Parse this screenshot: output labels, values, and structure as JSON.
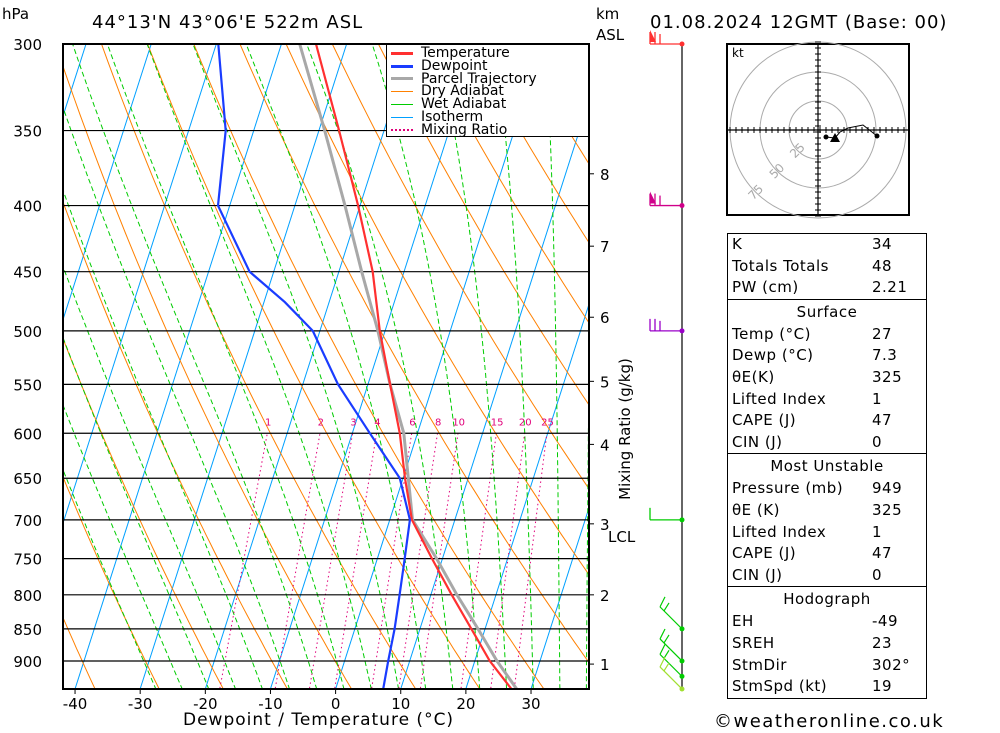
{
  "header": {
    "units_left": "hPa",
    "location": "44°13'N 43°06'E 522m ASL",
    "units_right_1": "km",
    "units_right_2": "ASL",
    "datetime": "01.08.2024 12GMT (Base: 00)"
  },
  "chart_data": {
    "type": "line",
    "subtype": "skew-t log-p",
    "xlabel": "Dewpoint / Temperature (°C)",
    "ylabel": "hPa",
    "x_ticks": [
      -40,
      -30,
      -20,
      -10,
      0,
      10,
      20,
      30
    ],
    "y_ticks": [
      300,
      350,
      400,
      450,
      500,
      550,
      600,
      650,
      700,
      750,
      800,
      850,
      900
    ],
    "ylim": [
      946,
      300
    ],
    "legend": [
      "Temperature",
      "Dewpoint",
      "Parcel Trajectory",
      "Dry Adiabat",
      "Wet Adiabat",
      "Isotherm",
      "Mixing Ratio"
    ],
    "legend_position": "top-right",
    "colors": {
      "temperature": "#ff3030",
      "dewpoint": "#1a3cff",
      "parcel": "#a8a8a8",
      "dry": "#ff8000",
      "wet": "#00cc00",
      "isotherm": "#00a0ff",
      "mixing": "#e0007a"
    },
    "series": [
      {
        "name": "Temperature",
        "pressure": [
          946,
          900,
          850,
          800,
          750,
          700,
          650,
          600,
          550,
          500,
          450,
          400,
          350,
          300
        ],
        "values": [
          27.0,
          22.3,
          17.9,
          13.2,
          8.4,
          3.4,
          0.3,
          -2.7,
          -6.6,
          -10.8,
          -14.8,
          -20.3,
          -26.9,
          -34.7
        ]
      },
      {
        "name": "Dewpoint",
        "pressure": [
          946,
          900,
          850,
          800,
          750,
          700,
          650,
          600,
          550,
          500,
          475,
          450,
          400,
          350,
          300
        ],
        "values": [
          7.3,
          6.7,
          6.1,
          5.2,
          4.2,
          3.1,
          -0.5,
          -7.3,
          -14.6,
          -21.1,
          -26.8,
          -33.7,
          -41.8,
          -44.3,
          -49.7
        ]
      },
      {
        "name": "Parcel Trajectory",
        "pressure": [
          946,
          900,
          850,
          800,
          750,
          700,
          650,
          600,
          550,
          500,
          450,
          400,
          350,
          300
        ],
        "values": [
          27.8,
          23.4,
          18.9,
          14.0,
          9.1,
          3.5,
          0.8,
          -2.1,
          -6.6,
          -11.1,
          -16.5,
          -22.3,
          -29.1,
          -37.2
        ]
      }
    ],
    "mixing_ratio_labels": [
      "1",
      "2",
      "3",
      "4",
      "6",
      "8",
      "10",
      "15",
      "20",
      "25"
    ],
    "mixing_ratio_axis_label": "Mixing Ratio (g/kg)",
    "km_labels": [
      {
        "km": "8",
        "p": 378
      },
      {
        "km": "7",
        "p": 430
      },
      {
        "km": "6",
        "p": 488
      },
      {
        "km": "5",
        "p": 547
      },
      {
        "km": "4",
        "p": 612
      },
      {
        "km": "3",
        "p": 705
      },
      {
        "km": "2",
        "p": 800
      },
      {
        "km": "1",
        "p": 905
      }
    ],
    "lcl_label": "LCL",
    "lcl_pressure": 710,
    "wind_levels": [
      {
        "p": 300,
        "color": "#ff3030"
      },
      {
        "p": 400,
        "color": "#d0008a"
      },
      {
        "p": 500,
        "color": "#9a00c8"
      },
      {
        "p": 700,
        "color": "#00cc00"
      },
      {
        "p": 850,
        "color": "#00cc00"
      },
      {
        "p": 900,
        "color": "#00cc00"
      },
      {
        "p": 925,
        "color": "#00cc00"
      },
      {
        "p": 946,
        "color": "#a0e030"
      }
    ]
  },
  "hodograph": {
    "unit_label": "kt",
    "ring_labels": [
      "25",
      "50",
      "75"
    ]
  },
  "indices": {
    "rows": [
      {
        "k": "K",
        "v": "34"
      },
      {
        "k": "Totals Totals",
        "v": "48"
      },
      {
        "k": "PW (cm)",
        "v": "2.21"
      }
    ]
  },
  "surface": {
    "title": "Surface",
    "rows": [
      {
        "k": "Temp (°C)",
        "v": "27"
      },
      {
        "k": "Dewp (°C)",
        "v": "7.3"
      },
      {
        "k": "θE(K)",
        "v": "325"
      },
      {
        "k": "Lifted Index",
        "v": "1"
      },
      {
        "k": "CAPE (J)",
        "v": "47"
      },
      {
        "k": "CIN (J)",
        "v": "0"
      }
    ]
  },
  "most_unstable": {
    "title": "Most Unstable",
    "rows": [
      {
        "k": "Pressure (mb)",
        "v": "949"
      },
      {
        "k": "θE (K)",
        "v": "325"
      },
      {
        "k": "Lifted Index",
        "v": "1"
      },
      {
        "k": "CAPE (J)",
        "v": "47"
      },
      {
        "k": "CIN (J)",
        "v": "0"
      }
    ]
  },
  "hodo_table": {
    "title": "Hodograph",
    "rows": [
      {
        "k": "EH",
        "v": "-49"
      },
      {
        "k": "SREH",
        "v": "23"
      },
      {
        "k": "StmDir",
        "v": "302°"
      },
      {
        "k": "StmSpd (kt)",
        "v": "19"
      }
    ]
  },
  "footer": {
    "copyright": "©weatheronline.co.uk"
  }
}
